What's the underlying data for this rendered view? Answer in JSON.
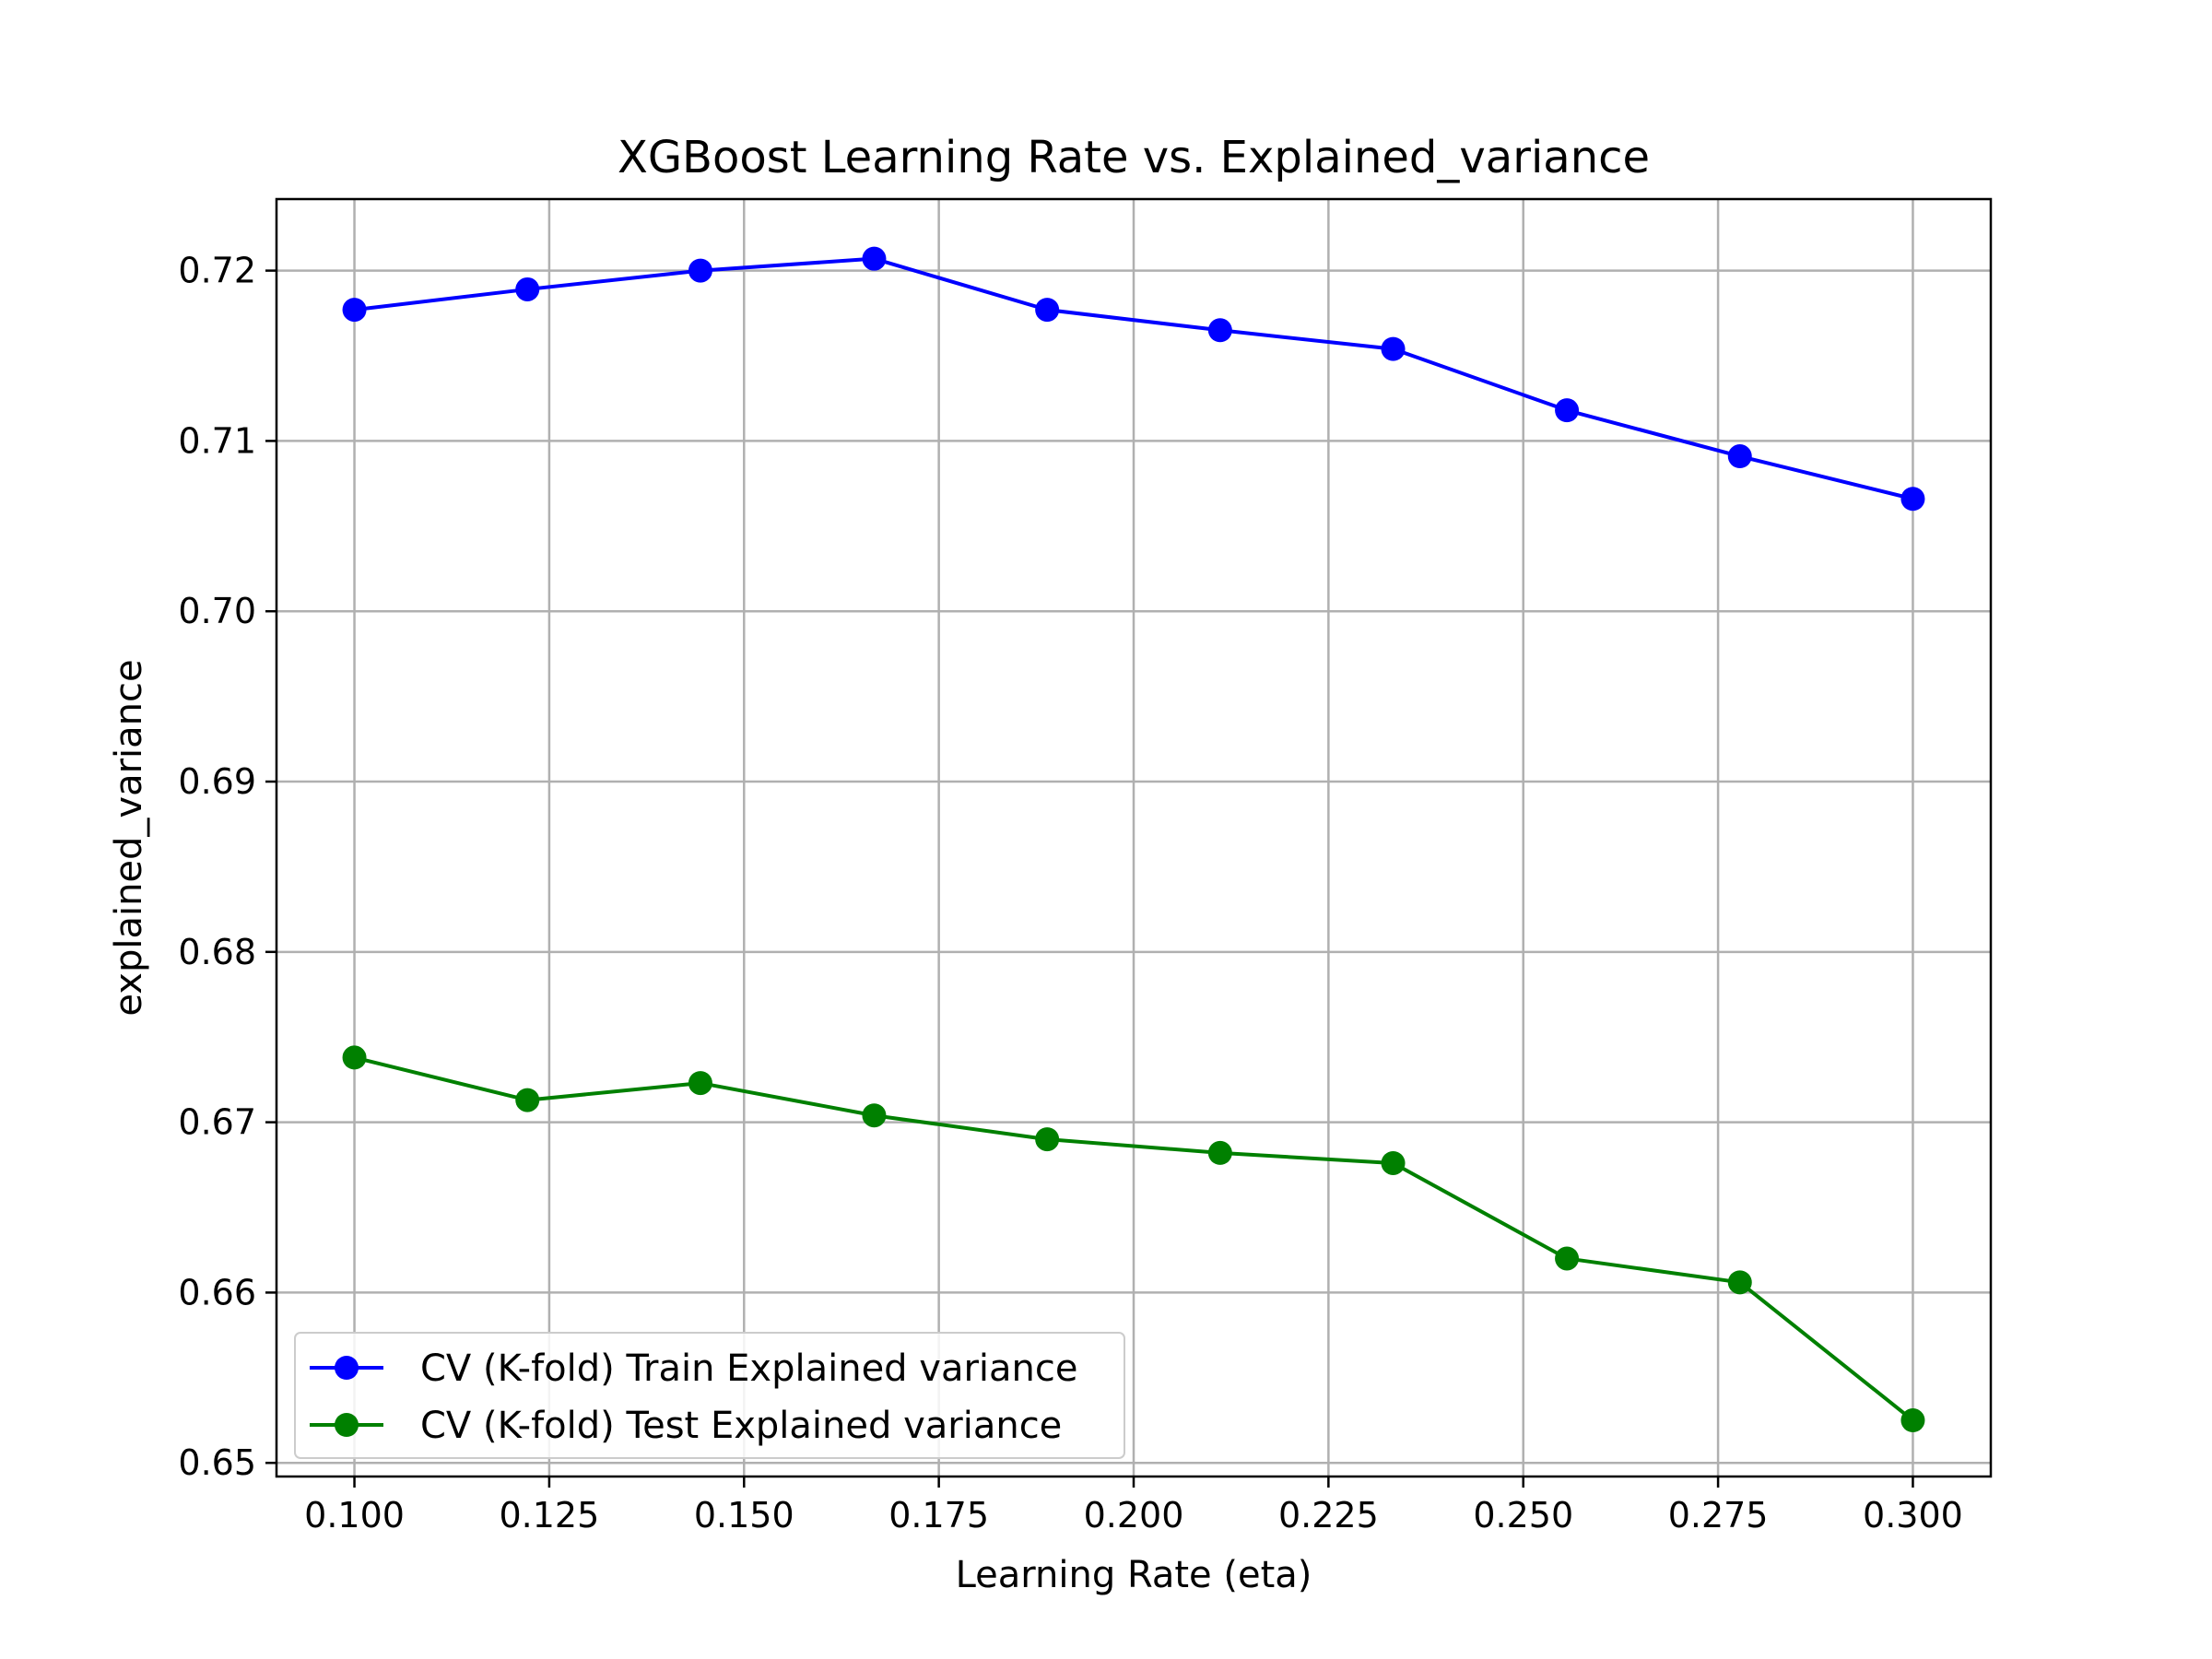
{
  "chart_data": {
    "type": "line",
    "title": "XGBoost Learning Rate vs. Explained_variance",
    "xlabel": "Learning Rate (eta)",
    "ylabel": "explained_variance",
    "xlim": [
      0.09,
      0.31
    ],
    "ylim": [
      0.6492,
      0.7242
    ],
    "grid": true,
    "legend_position": "lower-left",
    "x_ticks": [
      0.1,
      0.125,
      0.15,
      0.175,
      0.2,
      0.225,
      0.25,
      0.275,
      0.3
    ],
    "x_tick_labels": [
      "0.100",
      "0.125",
      "0.150",
      "0.175",
      "0.200",
      "0.225",
      "0.250",
      "0.275",
      "0.300"
    ],
    "y_ticks": [
      0.65,
      0.66,
      0.67,
      0.68,
      0.69,
      0.7,
      0.71,
      0.72
    ],
    "y_tick_labels": [
      "0.65",
      "0.66",
      "0.67",
      "0.68",
      "0.69",
      "0.70",
      "0.71",
      "0.72"
    ],
    "x": [
      0.1,
      0.1222,
      0.1444,
      0.1667,
      0.1889,
      0.2111,
      0.2333,
      0.2556,
      0.2778,
      0.3
    ],
    "series": [
      {
        "name": "CV (K-fold) Train Explained variance",
        "color": "#0000ff",
        "values": [
          0.7177,
          0.7189,
          0.72,
          0.7207,
          0.7177,
          0.7165,
          0.7154,
          0.7118,
          0.7091,
          0.7066
        ]
      },
      {
        "name": "CV (K-fold) Test Explained variance",
        "color": "#008000",
        "values": [
          0.6738,
          0.6713,
          0.6723,
          0.6704,
          0.669,
          0.6682,
          0.6676,
          0.662,
          0.6606,
          0.6525
        ]
      }
    ]
  }
}
